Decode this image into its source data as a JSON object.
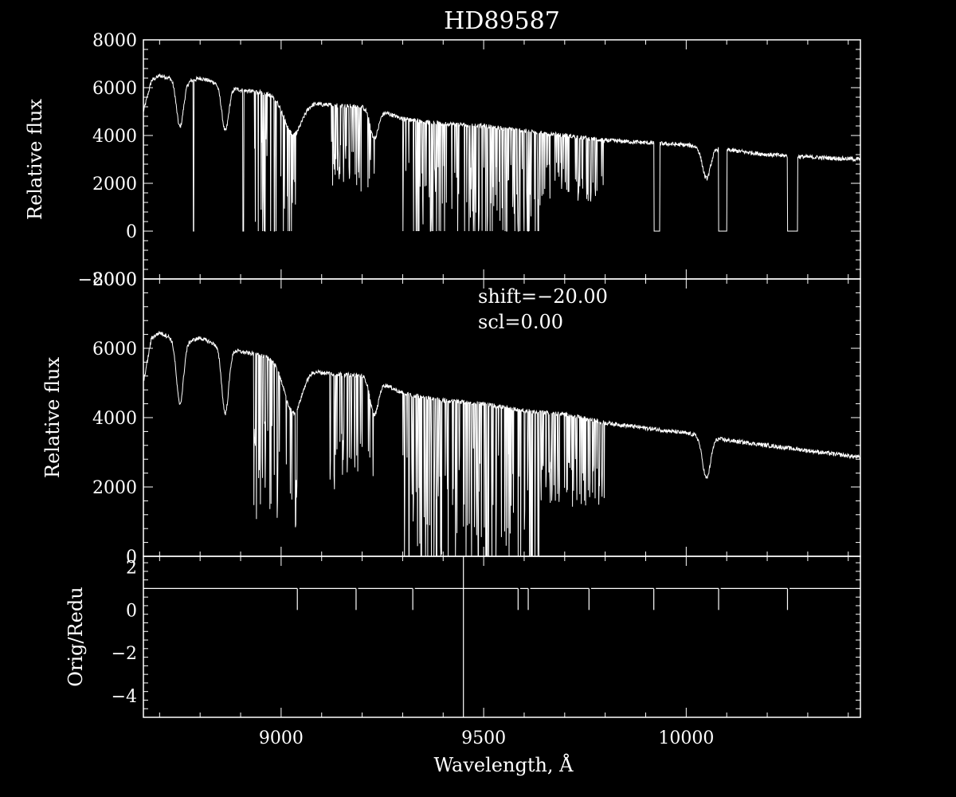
{
  "chart_data": {
    "title": "HD89587",
    "xlabel": "Wavelength, Å",
    "xlim": [
      8660,
      10430
    ],
    "xticks": [
      9000,
      9500,
      10000
    ],
    "xtick_labels": [
      "9000",
      "9500",
      "10000"
    ],
    "colors": {
      "background": "#000000",
      "foreground": "#ffffff"
    },
    "panels": [
      {
        "type": "line",
        "ylabel": "Relative flux",
        "ylim": [
          -2000,
          8000
        ],
        "yticks": [
          -2000,
          0,
          2000,
          4000,
          6000,
          8000
        ],
        "ytick_labels": [
          "−2000",
          "0",
          "2000",
          "4000",
          "6000",
          "8000"
        ],
        "continuum": [
          [
            8660,
            5000
          ],
          [
            8680,
            6300
          ],
          [
            8700,
            6500
          ],
          [
            8730,
            6400
          ],
          [
            8760,
            6200
          ],
          [
            8800,
            6400
          ],
          [
            8840,
            6200
          ],
          [
            8900,
            5900
          ],
          [
            8950,
            5800
          ],
          [
            9000,
            5600
          ],
          [
            9050,
            5500
          ],
          [
            9100,
            5300
          ],
          [
            9200,
            5200
          ],
          [
            9250,
            5000
          ],
          [
            9300,
            4700
          ],
          [
            9400,
            4500
          ],
          [
            9500,
            4400
          ],
          [
            9600,
            4200
          ],
          [
            9700,
            4000
          ],
          [
            9800,
            3800
          ],
          [
            9900,
            3700
          ],
          [
            10000,
            3600
          ],
          [
            10100,
            3400
          ],
          [
            10200,
            3200
          ],
          [
            10300,
            3100
          ],
          [
            10430,
            3000
          ]
        ],
        "absorption": [
          {
            "x": 8750,
            "depth": 1900,
            "width": 12
          },
          {
            "x": 8862,
            "depth": 1900,
            "width": 12
          },
          {
            "x": 9030,
            "depth": 1500,
            "width": 30
          },
          {
            "x": 9230,
            "depth": 1200,
            "width": 14
          },
          {
            "x": 10050,
            "depth": 1300,
            "width": 14
          }
        ],
        "bands": [
          {
            "from": 8930,
            "to": 9040,
            "max_depth": 0.92
          },
          {
            "from": 9120,
            "to": 9230,
            "max_depth": 0.6
          },
          {
            "from": 9300,
            "to": 9640,
            "max_depth": 1.0
          },
          {
            "from": 9640,
            "to": 9800,
            "max_depth": 0.55
          }
        ],
        "zero_gaps": [
          [
            8783,
            8785
          ],
          [
            8905,
            8908
          ],
          [
            9920,
            9935
          ],
          [
            10080,
            10100
          ],
          [
            10250,
            10275
          ]
        ],
        "noise": 90,
        "annotations": []
      },
      {
        "type": "line",
        "ylabel": "Relative flux",
        "ylim": [
          0,
          8000
        ],
        "yticks": [
          0,
          2000,
          4000,
          6000,
          8000
        ],
        "ytick_labels": [
          "0",
          "2000",
          "4000",
          "6000",
          "8000"
        ],
        "continuum": [
          [
            8660,
            5000
          ],
          [
            8680,
            6300
          ],
          [
            8700,
            6450
          ],
          [
            8730,
            6300
          ],
          [
            8760,
            6150
          ],
          [
            8800,
            6300
          ],
          [
            8840,
            6100
          ],
          [
            8900,
            5900
          ],
          [
            8950,
            5800
          ],
          [
            9000,
            5600
          ],
          [
            9050,
            5500
          ],
          [
            9100,
            5300
          ],
          [
            9200,
            5200
          ],
          [
            9250,
            5000
          ],
          [
            9300,
            4700
          ],
          [
            9400,
            4500
          ],
          [
            9500,
            4400
          ],
          [
            9600,
            4200
          ],
          [
            9700,
            4100
          ],
          [
            9800,
            3850
          ],
          [
            9900,
            3700
          ],
          [
            10000,
            3550
          ],
          [
            10100,
            3350
          ],
          [
            10200,
            3200
          ],
          [
            10300,
            3050
          ],
          [
            10430,
            2850
          ]
        ],
        "absorption": [
          {
            "x": 8750,
            "depth": 1800,
            "width": 12
          },
          {
            "x": 8862,
            "depth": 1900,
            "width": 12
          },
          {
            "x": 9030,
            "depth": 1400,
            "width": 30
          },
          {
            "x": 9230,
            "depth": 1000,
            "width": 14
          },
          {
            "x": 10050,
            "depth": 1200,
            "width": 14
          }
        ],
        "bands": [
          {
            "from": 8930,
            "to": 9040,
            "max_depth": 0.75
          },
          {
            "from": 9120,
            "to": 9230,
            "max_depth": 0.5
          },
          {
            "from": 9300,
            "to": 9640,
            "max_depth": 1.0
          },
          {
            "from": 9640,
            "to": 9800,
            "max_depth": 0.5
          }
        ],
        "zero_gaps": [],
        "noise": 60,
        "annotations": [
          "shift=−20.00",
          "scl=0.00"
        ]
      },
      {
        "type": "line",
        "ylabel": "Orig/Redu",
        "ylim": [
          -5,
          2.5
        ],
        "yticks": [
          -4,
          -2,
          0,
          2
        ],
        "ytick_labels": [
          "−4",
          "−2",
          "0",
          "2"
        ],
        "ratio_base": 1.0,
        "ratio_segments": [
          [
            8660,
            9040
          ],
          [
            9045,
            9185
          ],
          [
            9190,
            9325
          ],
          [
            9330,
            9585
          ],
          [
            9590,
            9610
          ],
          [
            9615,
            9760
          ],
          [
            9765,
            9920
          ],
          [
            9925,
            10080
          ],
          [
            10085,
            10250
          ],
          [
            10255,
            10430
          ]
        ],
        "ratio_drops": [
          9040,
          9185,
          9325,
          9585,
          9610,
          9760,
          9920,
          10080,
          10250
        ],
        "ratio_spike": {
          "x": 9450,
          "low": -5,
          "high": 2.5
        },
        "annotations": []
      }
    ]
  }
}
